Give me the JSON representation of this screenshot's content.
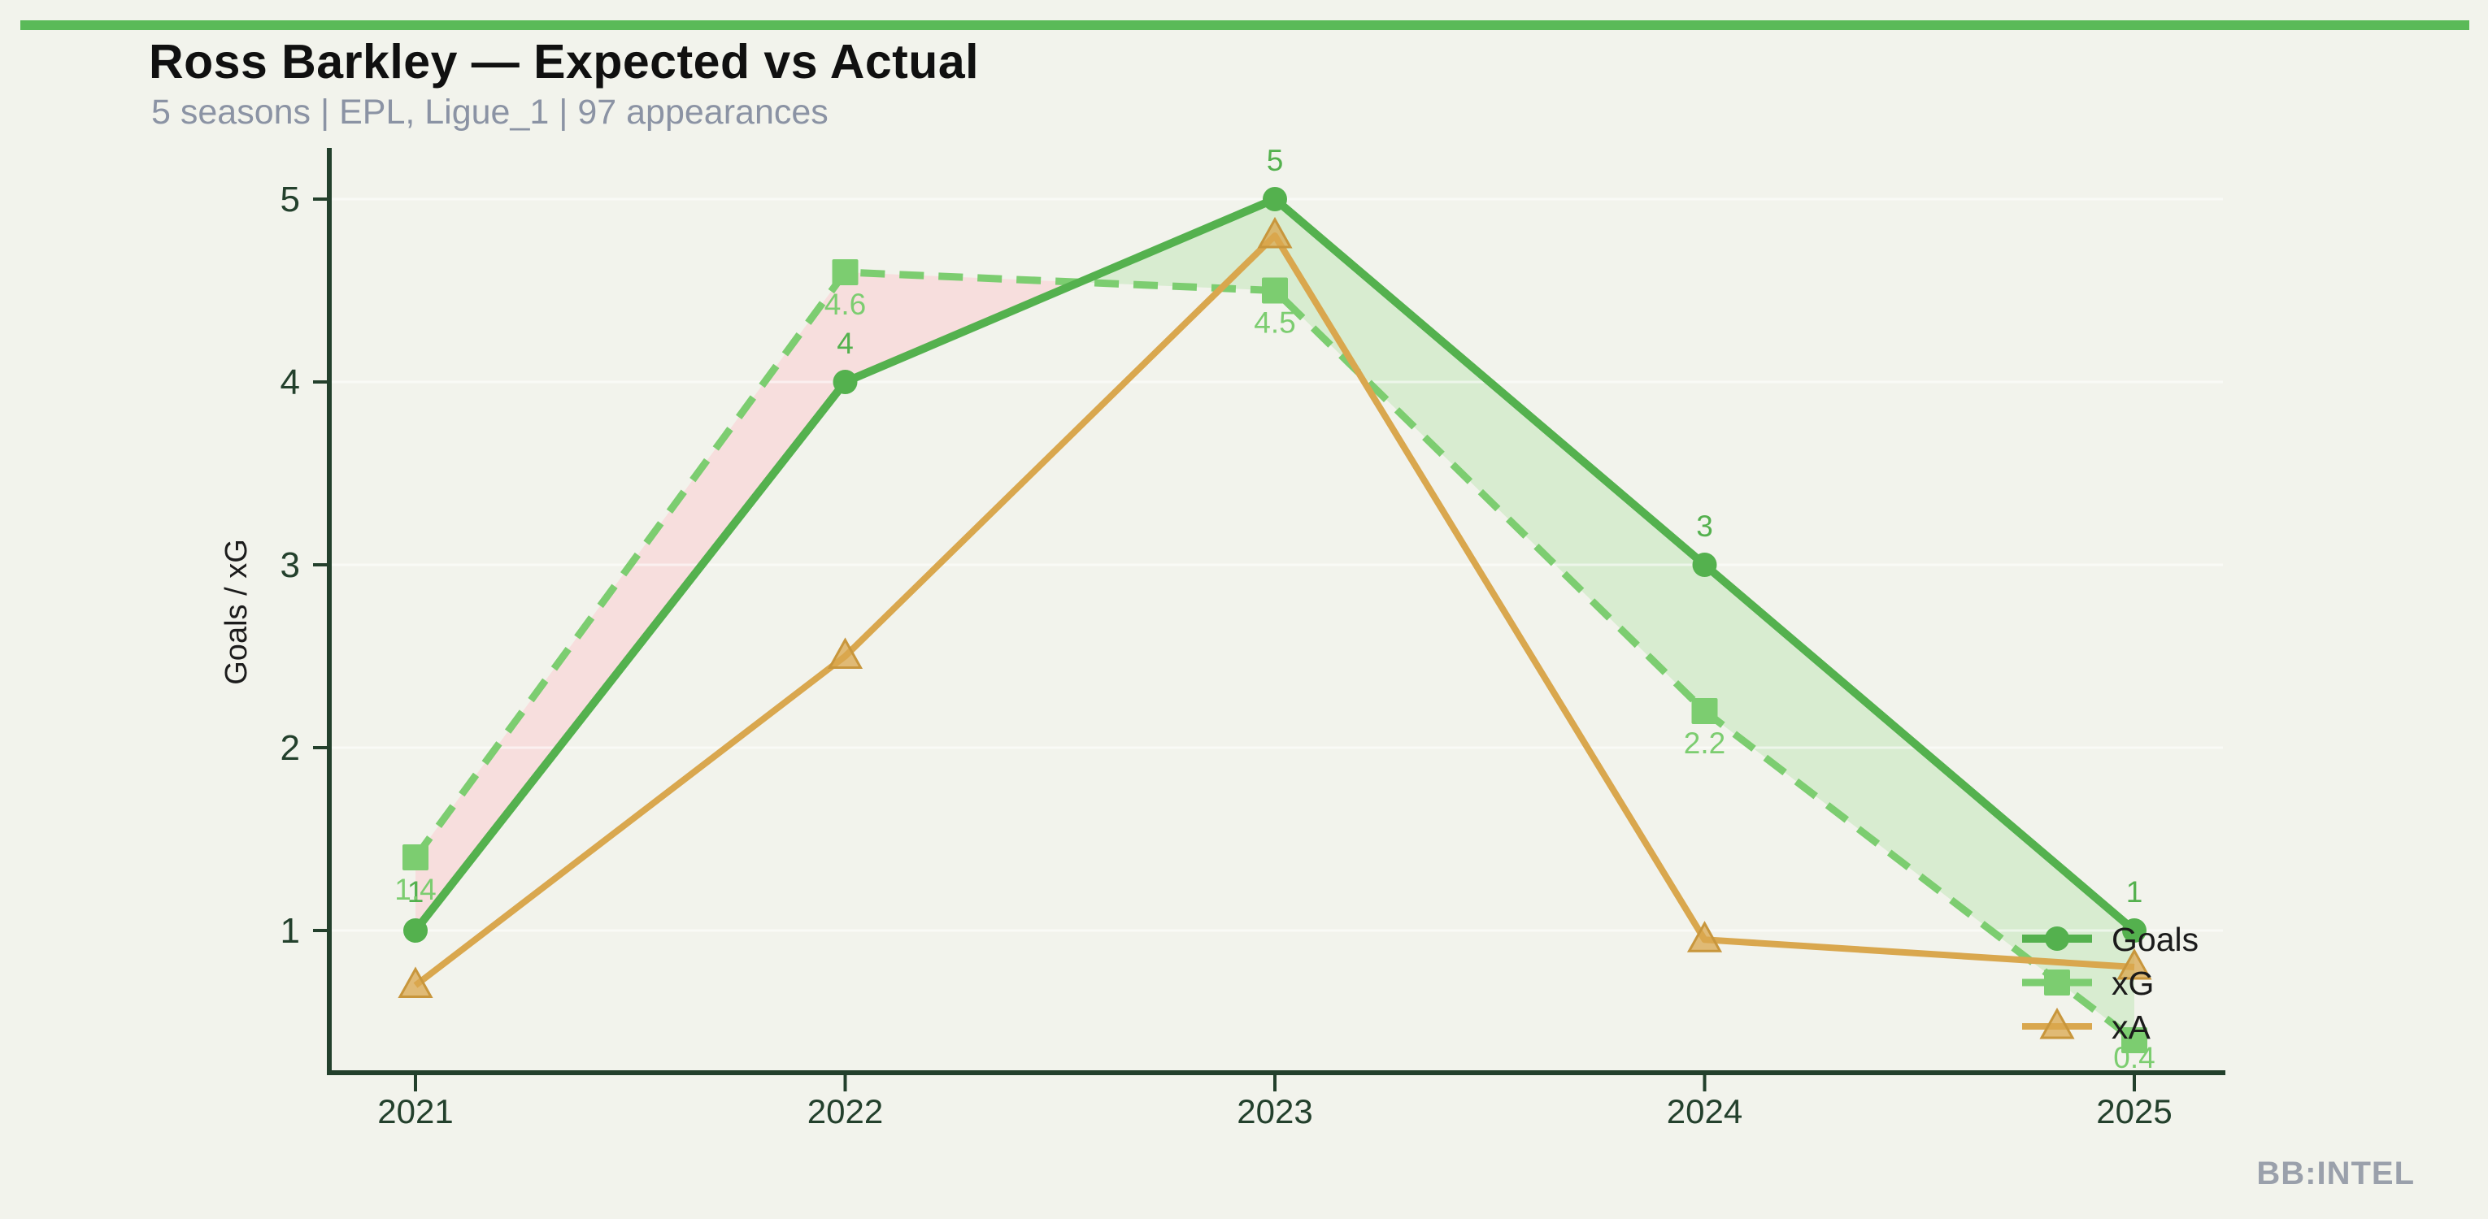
{
  "page": {
    "background": "#f2f3ec",
    "top_bar_color": "#5aba58"
  },
  "header": {
    "title": "Ross Barkley — Expected vs Actual",
    "subtitle": "5 seasons | EPL, Ligue_1 | 97 appearances"
  },
  "watermark": "BB:INTEL",
  "chart_data": {
    "type": "line",
    "title": "Ross Barkley — Expected vs Actual",
    "xlabel": "",
    "ylabel": "Goals / xG",
    "x": [
      2021,
      2022,
      2023,
      2024,
      2025
    ],
    "x_tick_labels": [
      "2021",
      "2022",
      "2023",
      "2024",
      "2025"
    ],
    "yticks": [
      1,
      2,
      3,
      4,
      5
    ],
    "ylim": [
      0.2,
      5.3
    ],
    "grid": "horizontal faint white lines at integer values",
    "legend_position": "lower right inside plot, no frame",
    "axis_color": "#23402c",
    "gridline_color": "rgba(255,255,255,0.55)",
    "series": [
      {
        "name": "Goals",
        "style": "solid",
        "marker": "circle",
        "color": "#54b14e",
        "values": [
          1,
          4,
          5,
          3,
          1
        ],
        "point_labels": [
          "1",
          "4",
          "5",
          "3",
          "1"
        ],
        "label_position": "above"
      },
      {
        "name": "xG",
        "style": "dashed",
        "marker": "square",
        "color": "#7ccd70",
        "values": [
          1.4,
          4.6,
          4.5,
          2.2,
          0.4
        ],
        "point_labels": [
          "1.4",
          "4.6",
          "4.5",
          "2.2",
          "0.4"
        ],
        "label_position": "below"
      },
      {
        "name": "xA",
        "style": "solid",
        "marker": "triangle",
        "color": "#d9a74e",
        "marker_edge_color": "#c8963c",
        "values": [
          0.7,
          2.5,
          4.8,
          0.95,
          0.8
        ],
        "point_labels": [],
        "label_position": "none"
      }
    ],
    "fill_between": {
      "upper": "Goals",
      "lower": "xG",
      "positive_color": "#d8ecd0",
      "negative_color": "#f7dedd",
      "description": "green where Goals > xG, pink where xG > Goals"
    }
  }
}
